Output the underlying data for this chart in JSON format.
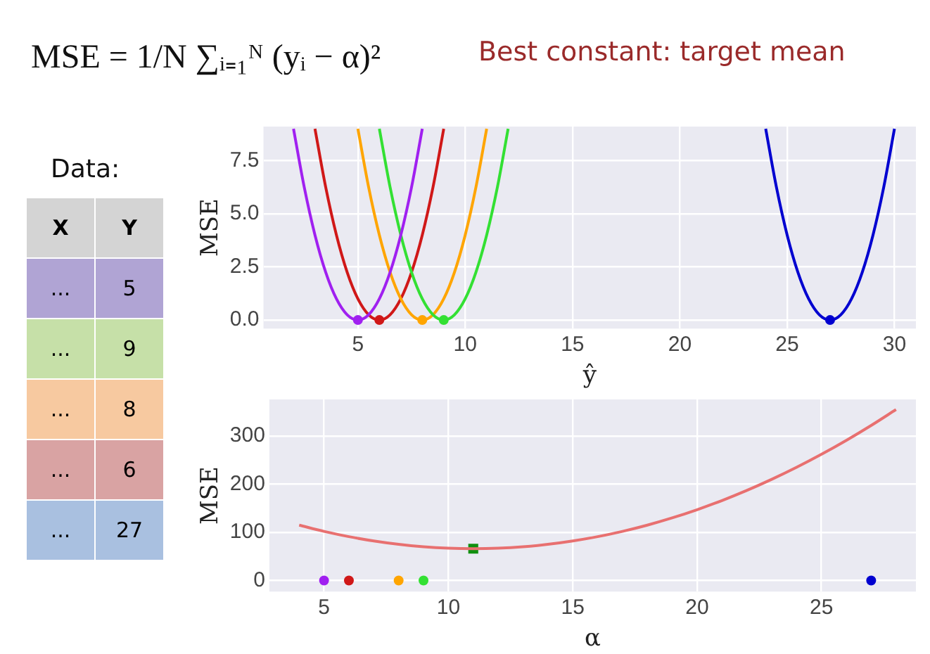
{
  "chart_data": [
    {
      "type": "other",
      "title": "Best constant: target mean",
      "annotations": [
        "MSE = 1/N ∑ᵢ₌₁ᴺ (yᵢ − α)²"
      ]
    },
    {
      "type": "other",
      "title": "Data:",
      "xlabel": "X",
      "ylabel": "Y",
      "data_labels": true,
      "categories": [
        "...",
        "...",
        "...",
        "...",
        "..."
      ],
      "values": [
        5,
        9,
        8,
        6,
        27
      ],
      "colors": [
        "#b0a4d4",
        "#c6e0a8",
        "#f7c9a0",
        "#d9a3a3",
        "#a9c0e0"
      ]
    },
    {
      "type": "line",
      "xlabel": "ŷ",
      "ylabel": "MSE",
      "xlim": [
        0.6,
        31
      ],
      "ylim": [
        -0.4,
        9.1
      ],
      "xticks": [
        5,
        10,
        15,
        20,
        25,
        30
      ],
      "yticks": [
        {
          "value": 0,
          "label": "0.0"
        },
        {
          "value": 2.5,
          "label": "2.5"
        },
        {
          "value": 5,
          "label": "5.0"
        },
        7.5
      ],
      "grid": true,
      "legend": false,
      "marker": "none",
      "series": [
        {
          "color": "#a020f0",
          "x": [
            2,
            2.5,
            3,
            3.5,
            4,
            4.5,
            5,
            5.5,
            6,
            6.5,
            7,
            7.5,
            8
          ],
          "values": [
            9,
            6.25,
            4,
            2.25,
            1,
            0.25,
            0,
            0.25,
            1,
            2.25,
            4,
            6.25,
            9
          ]
        },
        {
          "color": "#33e033",
          "x": [
            6,
            6.5,
            7,
            7.5,
            8,
            8.5,
            9,
            9.5,
            10,
            10.5,
            11,
            11.5,
            12
          ],
          "values": [
            9,
            6.25,
            4,
            2.25,
            1,
            0.25,
            0,
            0.25,
            1,
            2.25,
            4,
            6.25,
            9
          ]
        },
        {
          "color": "#ffa500",
          "x": [
            5,
            5.5,
            6,
            6.5,
            7,
            7.5,
            8,
            8.5,
            9,
            9.5,
            10,
            10.5,
            11
          ],
          "values": [
            9,
            6.25,
            4,
            2.25,
            1,
            0.25,
            0,
            0.25,
            1,
            2.25,
            4,
            6.25,
            9
          ]
        },
        {
          "color": "#d01818",
          "x": [
            3,
            3.5,
            4,
            4.5,
            5,
            5.5,
            6,
            6.5,
            7,
            7.5,
            8,
            8.5,
            9
          ],
          "values": [
            9,
            6.25,
            4,
            2.25,
            1,
            0.25,
            0,
            0.25,
            1,
            2.25,
            4,
            6.25,
            9
          ]
        },
        {
          "color": "#0000d0",
          "x": [
            24,
            24.5,
            25,
            25.5,
            26,
            26.5,
            27,
            27.5,
            28,
            28.5,
            29,
            29.5,
            30
          ],
          "values": [
            9,
            6.25,
            4,
            2.25,
            1,
            0.25,
            0,
            0.25,
            1,
            2.25,
            4,
            6.25,
            9
          ]
        },
        {
          "type": "scatter",
          "marker": "circle",
          "x": [
            5,
            9,
            8,
            6,
            27
          ],
          "values": [
            0,
            0,
            0,
            0,
            0
          ],
          "colors": [
            "#a020f0",
            "#33e033",
            "#ffa500",
            "#d01818",
            "#0000d0"
          ]
        }
      ]
    },
    {
      "type": "line",
      "xlabel": "α",
      "ylabel": "MSE",
      "xlim": [
        2.8,
        28.8
      ],
      "ylim": [
        -23,
        376
      ],
      "xticks": [
        5,
        10,
        15,
        20,
        25
      ],
      "yticks": [
        0,
        100,
        200,
        300
      ],
      "grid": true,
      "legend": false,
      "marker": "none",
      "series": [
        {
          "color": "#e87070",
          "x": [
            4,
            5,
            6,
            7,
            8,
            9,
            10,
            11,
            12,
            13,
            14,
            15,
            16,
            17,
            18,
            19,
            20,
            21,
            22,
            23,
            24,
            25,
            26,
            27,
            28
          ],
          "values": [
            115,
            102,
            91,
            82,
            75,
            70,
            67,
            66,
            67,
            70,
            75,
            82,
            91,
            102,
            115,
            130,
            147,
            166,
            187,
            210,
            235,
            262,
            291,
            322,
            355
          ]
        },
        {
          "type": "scatter",
          "marker": "circle",
          "x": [
            5,
            9,
            8,
            6,
            27
          ],
          "values": [
            0,
            0,
            0,
            0,
            0
          ],
          "colors": [
            "#a020f0",
            "#33e033",
            "#ffa500",
            "#d01818",
            "#0000d0"
          ]
        },
        {
          "type": "scatter",
          "marker": "square",
          "color": "#109010",
          "x": [
            11
          ],
          "values": [
            66
          ]
        }
      ]
    }
  ]
}
